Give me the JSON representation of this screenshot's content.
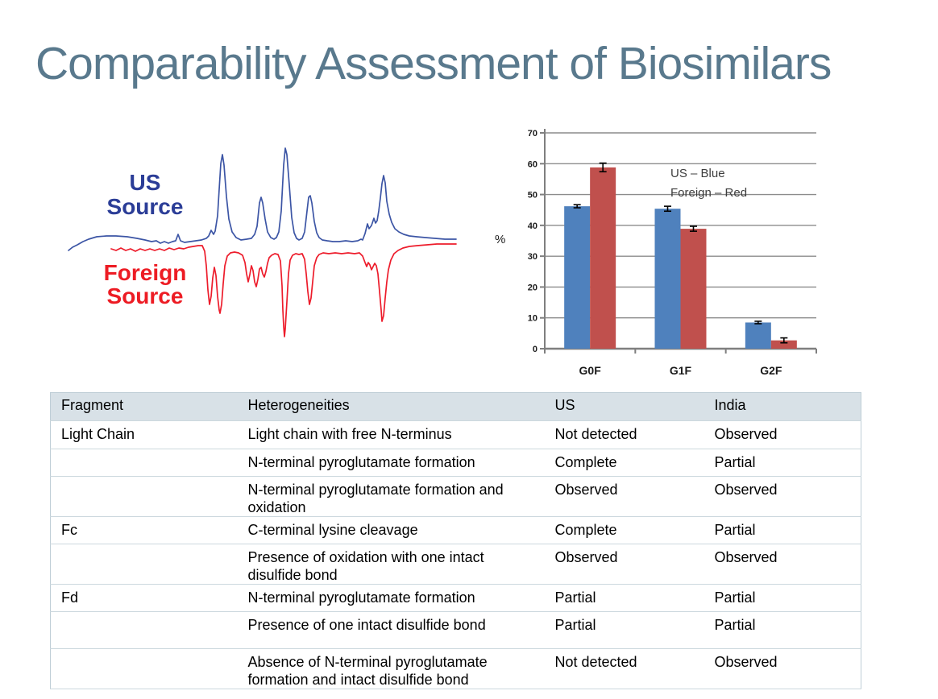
{
  "title": "Comparability Assessment of Biosimilars",
  "chromatogram": {
    "us_label": "US Source",
    "foreign_label": "Foreign Source",
    "us_label_color": "#2b3d97",
    "foreign_label_color": "#ed1c24",
    "us_trace_color": "#3c55a5",
    "foreign_trace_color": "#ed1c2b"
  },
  "chart_data": {
    "type": "bar",
    "categories": [
      "G0F",
      "G1F",
      "G2F"
    ],
    "series": [
      {
        "name": "US",
        "color": "#4f81bd",
        "values": [
          46.2,
          45.4,
          8.5
        ],
        "errors": [
          0.5,
          0.8,
          0.4
        ]
      },
      {
        "name": "Foreign",
        "color": "#c0504d",
        "values": [
          58.8,
          38.9,
          2.7
        ],
        "errors": [
          1.4,
          0.8,
          0.8
        ]
      }
    ],
    "title": "",
    "xlabel": "",
    "ylabel": "%",
    "ylim": [
      0,
      70
    ],
    "ytick_step": 10,
    "grid": true,
    "legend_lines": [
      "US – Blue",
      "Foreign – Red"
    ],
    "legend_position": "inside-top",
    "grid_color": "#8c8c8c",
    "axis_color": "#7f7f7f",
    "tick_label_color": "#1a1a1a",
    "legend_color": "#3d3d3d"
  },
  "table": {
    "headers": [
      "Fragment",
      "Heterogeneities",
      "US",
      "India"
    ],
    "rows": [
      {
        "fragment": "Light Chain",
        "heterogeneity": "Light chain with free N-terminus",
        "us": "Not detected",
        "india": "Observed"
      },
      {
        "fragment": "",
        "heterogeneity": "N-terminal pyroglutamate formation",
        "us": "Complete",
        "india": "Partial"
      },
      {
        "fragment": "",
        "heterogeneity": "N-terminal pyroglutamate formation and oxidation",
        "us": "Observed",
        "india": "Observed"
      },
      {
        "fragment": "Fc",
        "heterogeneity": "C-terminal lysine cleavage",
        "us": "Complete",
        "india": "Partial"
      },
      {
        "fragment": "",
        "heterogeneity": "Presence of oxidation with one intact disulfide bond",
        "us": "Observed",
        "india": "Observed"
      },
      {
        "fragment": "Fd",
        "heterogeneity": "N-terminal pyroglutamate formation",
        "us": "Partial",
        "india": "Partial"
      },
      {
        "fragment": "",
        "heterogeneity": "Presence of one intact disulfide bond",
        "us": "Partial",
        "india": "Partial"
      },
      {
        "fragment": "",
        "heterogeneity": "Absence of N-terminal pyroglutamate formation and intact disulfide bond",
        "us": "Not detected",
        "india": "Observed"
      }
    ]
  },
  "colors": {
    "title": "#59798d",
    "table_header_bg": "#d8e1e7"
  }
}
